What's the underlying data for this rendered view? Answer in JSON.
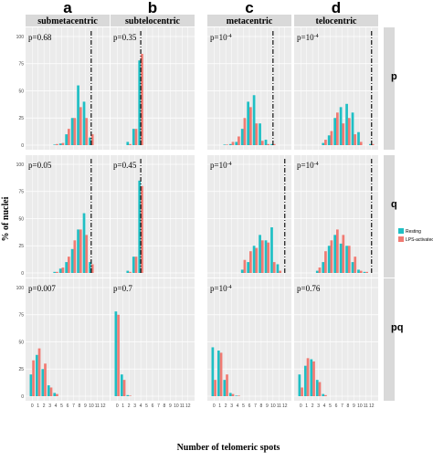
{
  "chart_data": {
    "type": "bar",
    "column_letters": [
      "a",
      "b",
      "c",
      "d"
    ],
    "columns": [
      "submetacentric",
      "subtelocentric",
      "metacentric",
      "telocentric"
    ],
    "rows": [
      "p",
      "q",
      "pq"
    ],
    "xlabel": "Number of telomeric spots",
    "ylabel": "% of nuclei",
    "x_ticks": [
      "0",
      "1",
      "2",
      "3",
      "4",
      "5",
      "6",
      "7",
      "8",
      "9",
      "10",
      "11",
      "12"
    ],
    "y_ticks": [
      "0",
      "25",
      "50",
      "75",
      "100"
    ],
    "ylim": [
      0,
      100
    ],
    "legend": [
      "Resting",
      "LPS-activated"
    ],
    "colors": {
      "Resting": "#1fbfc4",
      "LPS-activated": "#f07a72",
      "panel_bg": "#ebebeb",
      "strip_bg": "#d9d9d9"
    },
    "panels": [
      {
        "row": "p",
        "col": "submetacentric",
        "p_label": "p=0.68",
        "vline": 10,
        "resting": [
          [
            4,
            0.5
          ],
          [
            5,
            1.5
          ],
          [
            6,
            10
          ],
          [
            7,
            25
          ],
          [
            8,
            55
          ],
          [
            9,
            40
          ],
          [
            10,
            7
          ]
        ],
        "lps": [
          [
            4,
            1
          ],
          [
            5,
            2
          ],
          [
            6,
            15
          ],
          [
            7,
            25
          ],
          [
            8,
            35
          ],
          [
            9,
            25
          ],
          [
            10,
            10
          ]
        ]
      },
      {
        "row": "p",
        "col": "subtelocentric",
        "p_label": "p=0.35",
        "vline": 4,
        "resting": [
          [
            2,
            3
          ],
          [
            3,
            15
          ],
          [
            4,
            78
          ]
        ],
        "lps": [
          [
            2,
            1
          ],
          [
            3,
            15
          ],
          [
            4,
            84
          ]
        ]
      },
      {
        "row": "p",
        "col": "metacentric",
        "p_label": "p=10-4",
        "vline": 10,
        "resting": [
          [
            2,
            0.5
          ],
          [
            3,
            1
          ],
          [
            4,
            3
          ],
          [
            5,
            15
          ],
          [
            6,
            40
          ],
          [
            7,
            46
          ],
          [
            8,
            20
          ],
          [
            9,
            5
          ],
          [
            10,
            1
          ]
        ],
        "lps": [
          [
            2,
            0.5
          ],
          [
            3,
            3
          ],
          [
            4,
            8
          ],
          [
            5,
            25
          ],
          [
            6,
            35
          ],
          [
            7,
            20
          ],
          [
            8,
            4
          ],
          [
            9,
            1
          ],
          [
            10,
            1
          ]
        ]
      },
      {
        "row": "p",
        "col": "telocentric",
        "p_label": "p=10-4",
        "vline": 12,
        "resting": [
          [
            4,
            2
          ],
          [
            5,
            9
          ],
          [
            6,
            25
          ],
          [
            7,
            35
          ],
          [
            8,
            38
          ],
          [
            9,
            30
          ],
          [
            10,
            12
          ],
          [
            12,
            1
          ]
        ],
        "lps": [
          [
            4,
            5
          ],
          [
            5,
            13
          ],
          [
            6,
            30
          ],
          [
            7,
            20
          ],
          [
            8,
            25
          ],
          [
            9,
            10
          ],
          [
            10,
            3
          ],
          [
            12,
            1
          ]
        ]
      },
      {
        "row": "q",
        "col": "submetacentric",
        "p_label": "p=0.05",
        "vline": 10,
        "resting": [
          [
            4,
            1
          ],
          [
            5,
            4
          ],
          [
            6,
            10
          ],
          [
            7,
            22
          ],
          [
            8,
            40
          ],
          [
            9,
            55
          ],
          [
            10,
            10
          ]
        ],
        "lps": [
          [
            4,
            1
          ],
          [
            5,
            5
          ],
          [
            6,
            15
          ],
          [
            7,
            30
          ],
          [
            8,
            40
          ],
          [
            9,
            35
          ],
          [
            10,
            8
          ]
        ]
      },
      {
        "row": "q",
        "col": "subtelocentric",
        "p_label": "p=0.45",
        "vline": 4,
        "resting": [
          [
            2,
            2
          ],
          [
            3,
            15
          ],
          [
            4,
            85
          ]
        ],
        "lps": [
          [
            2,
            1
          ],
          [
            3,
            15
          ],
          [
            4,
            80
          ]
        ]
      },
      {
        "row": "q",
        "col": "metacentric",
        "p_label": "p=10-4",
        "vline": 12,
        "resting": [
          [
            5,
            3
          ],
          [
            6,
            10
          ],
          [
            7,
            25
          ],
          [
            8,
            35
          ],
          [
            9,
            30
          ],
          [
            10,
            42
          ],
          [
            11,
            8
          ]
        ],
        "lps": [
          [
            5,
            12
          ],
          [
            6,
            20
          ],
          [
            7,
            23
          ],
          [
            8,
            30
          ],
          [
            9,
            28
          ],
          [
            10,
            10
          ],
          [
            11,
            2
          ]
        ]
      },
      {
        "row": "q",
        "col": "telocentric",
        "p_label": "p=10-4",
        "vline": 12,
        "resting": [
          [
            3,
            2
          ],
          [
            4,
            10
          ],
          [
            5,
            25
          ],
          [
            6,
            35
          ],
          [
            7,
            27
          ],
          [
            8,
            25
          ],
          [
            9,
            10
          ],
          [
            10,
            3
          ],
          [
            11,
            1
          ]
        ],
        "lps": [
          [
            3,
            5
          ],
          [
            4,
            20
          ],
          [
            5,
            30
          ],
          [
            6,
            40
          ],
          [
            7,
            35
          ],
          [
            8,
            25
          ],
          [
            9,
            15
          ],
          [
            10,
            2
          ],
          [
            11,
            1
          ]
        ]
      },
      {
        "row": "pq",
        "col": "submetacentric",
        "p_label": "p=0.007",
        "vline": null,
        "resting": [
          [
            0,
            20
          ],
          [
            1,
            38
          ],
          [
            2,
            25
          ],
          [
            3,
            10
          ],
          [
            4,
            3
          ]
        ],
        "lps": [
          [
            0,
            33
          ],
          [
            1,
            44
          ],
          [
            2,
            30
          ],
          [
            3,
            8
          ],
          [
            4,
            2
          ]
        ]
      },
      {
        "row": "pq",
        "col": "subtelocentric",
        "p_label": "p=0.7",
        "vline": null,
        "resting": [
          [
            0,
            78
          ],
          [
            1,
            20
          ],
          [
            2,
            1
          ]
        ],
        "lps": [
          [
            0,
            75
          ],
          [
            1,
            15
          ],
          [
            2,
            0.5
          ]
        ]
      },
      {
        "row": "pq",
        "col": "metacentric",
        "p_label": "p=10-4",
        "vline": null,
        "resting": [
          [
            0,
            45
          ],
          [
            1,
            42
          ],
          [
            2,
            15
          ],
          [
            3,
            3
          ],
          [
            4,
            0.5
          ]
        ],
        "lps": [
          [
            0,
            15
          ],
          [
            1,
            40
          ],
          [
            2,
            20
          ],
          [
            3,
            2
          ],
          [
            4,
            0.5
          ]
        ]
      },
      {
        "row": "pq",
        "col": "telocentric",
        "p_label": "p=0.76",
        "vline": null,
        "resting": [
          [
            0,
            20
          ],
          [
            1,
            28
          ],
          [
            2,
            34
          ],
          [
            3,
            15
          ],
          [
            4,
            2
          ]
        ],
        "lps": [
          [
            0,
            8
          ],
          [
            1,
            35
          ],
          [
            2,
            32
          ],
          [
            3,
            13
          ],
          [
            4,
            1
          ]
        ]
      }
    ]
  }
}
